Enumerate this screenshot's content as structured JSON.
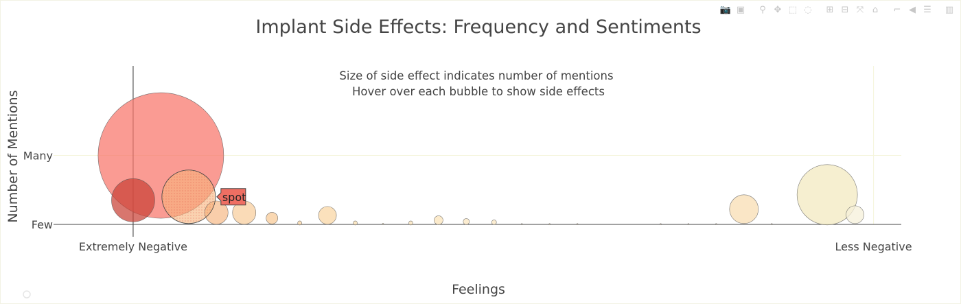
{
  "modebar": {
    "buttons": [
      {
        "name": "camera-icon",
        "glyph": "📷"
      },
      {
        "name": "save-icon",
        "glyph": "▣"
      },
      {
        "name": "sep"
      },
      {
        "name": "zoom-icon",
        "glyph": "⚲"
      },
      {
        "name": "pan-icon",
        "glyph": "✥"
      },
      {
        "name": "box-select-icon",
        "glyph": "⬚"
      },
      {
        "name": "lasso-icon",
        "glyph": "◌"
      },
      {
        "name": "sep"
      },
      {
        "name": "zoom-in-icon",
        "glyph": "⊞"
      },
      {
        "name": "zoom-out-icon",
        "glyph": "⊟"
      },
      {
        "name": "autoscale-icon",
        "glyph": "⤧"
      },
      {
        "name": "home-icon",
        "glyph": "⌂"
      },
      {
        "name": "sep"
      },
      {
        "name": "spike-lines-icon",
        "glyph": "⌐"
      },
      {
        "name": "hover-closest-icon",
        "glyph": "◀"
      },
      {
        "name": "hover-compare-icon",
        "glyph": "☰"
      },
      {
        "name": "sep"
      },
      {
        "name": "plotly-logo-icon",
        "glyph": "▥"
      }
    ]
  },
  "chart_data": {
    "type": "scatter",
    "title": "Implant Side Effects: Frequency and Sentiments",
    "annotation_line1": "Size of side effect indicates number of mentions",
    "annotation_line2": "Hover over each bubble to show side effects",
    "xlabel": "Feelings",
    "ylabel": "Number of Mentions",
    "xlim": [
      -0.43,
      4.15
    ],
    "ylim": [
      -0.15,
      2.3
    ],
    "x_ticks": [
      {
        "value": 0,
        "label": "Extremely Negative"
      },
      {
        "value": 4,
        "label": "Less Negative"
      }
    ],
    "y_ticks": [
      {
        "value": 0,
        "label": "Few"
      },
      {
        "value": 1,
        "label": "Many"
      }
    ],
    "grid": true,
    "spike_x": 0,
    "colors": {
      "grid": "#f5f5dc",
      "axis": "#444444",
      "bubble_stroke": "#555555",
      "text": "#444444"
    },
    "points": [
      {
        "x": 0.15,
        "y": 1.0,
        "size": 183,
        "color": "#f8746a",
        "opacity": 0.72
      },
      {
        "x": 0.0,
        "y": 0.35,
        "size": 63,
        "color": "#c94136",
        "opacity": 0.72
      },
      {
        "x": 0.3,
        "y": 0.4,
        "size": 78,
        "color": "#f6b47c",
        "opacity": 0.6
      },
      {
        "x": 0.45,
        "y": 0.17,
        "size": 34,
        "color": "#f6b47c",
        "opacity": 0.65
      },
      {
        "x": 0.6,
        "y": 0.17,
        "size": 34,
        "color": "#f8c891",
        "opacity": 0.65
      },
      {
        "x": 0.75,
        "y": 0.09,
        "size": 17,
        "color": "#f8c891",
        "opacity": 0.7
      },
      {
        "x": 0.9,
        "y": 0.02,
        "size": 6,
        "color": "#f9d49f",
        "opacity": 0.7
      },
      {
        "x": 1.05,
        "y": 0.13,
        "size": 26,
        "color": "#f9d49f",
        "opacity": 0.7
      },
      {
        "x": 1.2,
        "y": 0.02,
        "size": 6,
        "color": "#fbdfaf",
        "opacity": 0.7
      },
      {
        "x": 1.35,
        "y": 0.005,
        "size": 2,
        "color": "#fbdfaf",
        "opacity": 0.7
      },
      {
        "x": 1.5,
        "y": 0.02,
        "size": 6,
        "color": "#fbe3b6",
        "opacity": 0.7
      },
      {
        "x": 1.65,
        "y": 0.06,
        "size": 13,
        "color": "#fbe3b6",
        "opacity": 0.7
      },
      {
        "x": 1.8,
        "y": 0.04,
        "size": 9,
        "color": "#fbe6be",
        "opacity": 0.7
      },
      {
        "x": 1.95,
        "y": 0.03,
        "size": 7,
        "color": "#fbe6be",
        "opacity": 0.7
      },
      {
        "x": 2.1,
        "y": 0.003,
        "size": 2,
        "color": "#fbe8c4",
        "opacity": 0.7
      },
      {
        "x": 2.25,
        "y": 0.003,
        "size": 2,
        "color": "#fbe8c4",
        "opacity": 0.7
      },
      {
        "x": 2.4,
        "y": 0.003,
        "size": 2,
        "color": "#fbeacb",
        "opacity": 0.7
      },
      {
        "x": 2.85,
        "y": 0.003,
        "size": 2,
        "color": "#fbeacb",
        "opacity": 0.7
      },
      {
        "x": 3.0,
        "y": 0.003,
        "size": 2,
        "color": "#fbecd1",
        "opacity": 0.7
      },
      {
        "x": 3.15,
        "y": 0.003,
        "size": 2,
        "color": "#fbecd1",
        "opacity": 0.7
      },
      {
        "x": 3.3,
        "y": 0.22,
        "size": 42,
        "color": "#f8dcae",
        "opacity": 0.7
      },
      {
        "x": 3.45,
        "y": 0.003,
        "size": 2,
        "color": "#f9e8c8",
        "opacity": 0.7
      },
      {
        "x": 3.75,
        "y": 0.43,
        "size": 88,
        "color": "#f3eac0",
        "opacity": 0.75
      },
      {
        "x": 3.9,
        "y": 0.14,
        "size": 26,
        "color": "#f6f0d9",
        "opacity": 0.75
      }
    ],
    "hover": {
      "point_index": 2,
      "label": "spot",
      "color": "#ef6f63"
    }
  }
}
